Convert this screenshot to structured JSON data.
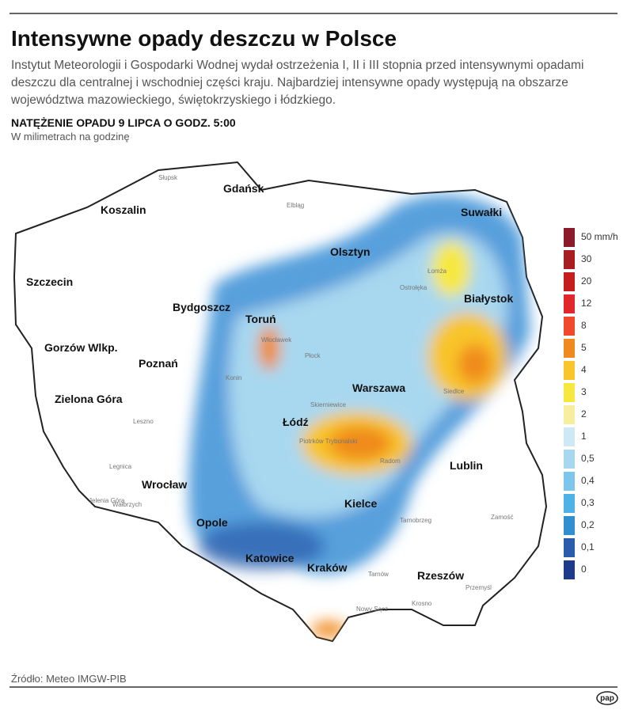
{
  "header": {
    "title": "Intensywne opady deszczu w Polsce",
    "description": [
      "Instytut Meteorologii i Gospodarki Wodnej wydał ostrzeżenia I, II i III stopnia przed intensywnymi opadami",
      "deszczu dla centralnej i wschodniej części kraju. Najbardziej intensywne opady występują na obszarze",
      "województwa mazowieckiego, świętokrzyskiego i łódzkiego."
    ],
    "subtitle": "NATĘŻENIE OPADU 9 LIPCA O GODZ. 5:00",
    "unit": "W milimetrach na godzinę"
  },
  "map": {
    "cities": [
      "Gdańsk",
      "Koszalin",
      "Suwałki",
      "Olsztyn",
      "Szczecin",
      "Bydgoszcz",
      "Białystok",
      "Toruń",
      "Gorzów Wlkp.",
      "Poznań",
      "Warszawa",
      "Zielona Góra",
      "Łódź",
      "Lublin",
      "Wrocław",
      "Kielce",
      "Opole",
      "Katowice",
      "Kraków",
      "Rzeszów"
    ],
    "towns": [
      "Słupsk",
      "Elbląg",
      "Łomża",
      "Ostrołęka",
      "Siedlce",
      "Włocławek",
      "Płock",
      "Konin",
      "Leszno",
      "Legnica",
      "Wałbrzych",
      "Jelenia Góra",
      "Skierniewice",
      "Piotrków Trybunalski",
      "Radom",
      "Tarnobrzeg",
      "Zamość",
      "Tarnów",
      "Krosno",
      "Przemyśl",
      "Nowy Sącz"
    ]
  },
  "legend": {
    "high": [
      {
        "label": "50 mm/h",
        "color": "#8b1a2b"
      },
      {
        "label": "30",
        "color": "#a71d22"
      },
      {
        "label": "20",
        "color": "#c41e1e"
      },
      {
        "label": "12",
        "color": "#e0282a"
      },
      {
        "label": "8",
        "color": "#f04a2c"
      },
      {
        "label": "5",
        "color": "#f08a1e"
      },
      {
        "label": "4",
        "color": "#f8c52a"
      },
      {
        "label": "3",
        "color": "#f7e840"
      },
      {
        "label": "2",
        "color": "#f8eea0"
      }
    ],
    "low": [
      {
        "label": "1",
        "color": "#cfe8f6"
      },
      {
        "label": "0,5",
        "color": "#a8d8f0"
      },
      {
        "label": "0,4",
        "color": "#7cc6ec"
      },
      {
        "label": "0,3",
        "color": "#4fb2e6"
      },
      {
        "label": "0,2",
        "color": "#2f8fd0"
      },
      {
        "label": "0,1",
        "color": "#2a5cab"
      },
      {
        "label": "0",
        "color": "#1e3a8a"
      }
    ]
  },
  "footer": {
    "source": "Źródło: Meteo IMGW-PIB",
    "logo": "pap"
  }
}
